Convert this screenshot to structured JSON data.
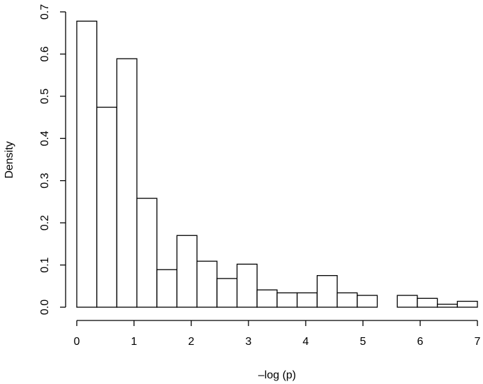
{
  "chart_data": {
    "type": "bar",
    "subtype": "histogram",
    "title": "",
    "xlabel": "–log (p)",
    "ylabel": "Density",
    "xlim": [
      0,
      7
    ],
    "ylim": [
      0,
      0.7
    ],
    "x_ticks": [
      "0",
      "1",
      "2",
      "3",
      "4",
      "5",
      "6",
      "7"
    ],
    "y_ticks": [
      "0.0",
      "0.1",
      "0.2",
      "0.3",
      "0.4",
      "0.5",
      "0.6",
      "0.7"
    ],
    "bin_width": 0.35,
    "bins": [
      {
        "x_start": 0.0,
        "x_end": 0.35,
        "density": 0.678
      },
      {
        "x_start": 0.35,
        "x_end": 0.7,
        "density": 0.474
      },
      {
        "x_start": 0.7,
        "x_end": 1.05,
        "density": 0.589
      },
      {
        "x_start": 1.05,
        "x_end": 1.4,
        "density": 0.258
      },
      {
        "x_start": 1.4,
        "x_end": 1.75,
        "density": 0.089
      },
      {
        "x_start": 1.75,
        "x_end": 2.1,
        "density": 0.17
      },
      {
        "x_start": 2.1,
        "x_end": 2.45,
        "density": 0.109
      },
      {
        "x_start": 2.45,
        "x_end": 2.8,
        "density": 0.068
      },
      {
        "x_start": 2.8,
        "x_end": 3.15,
        "density": 0.102
      },
      {
        "x_start": 3.15,
        "x_end": 3.5,
        "density": 0.041
      },
      {
        "x_start": 3.5,
        "x_end": 3.85,
        "density": 0.034
      },
      {
        "x_start": 3.85,
        "x_end": 4.2,
        "density": 0.034
      },
      {
        "x_start": 4.2,
        "x_end": 4.55,
        "density": 0.075
      },
      {
        "x_start": 4.55,
        "x_end": 4.9,
        "density": 0.034
      },
      {
        "x_start": 4.9,
        "x_end": 5.25,
        "density": 0.028
      },
      {
        "x_start": 5.25,
        "x_end": 5.6,
        "density": 0.0
      },
      {
        "x_start": 5.6,
        "x_end": 5.95,
        "density": 0.028
      },
      {
        "x_start": 5.95,
        "x_end": 6.3,
        "density": 0.021
      },
      {
        "x_start": 6.3,
        "x_end": 6.65,
        "density": 0.007
      },
      {
        "x_start": 6.65,
        "x_end": 7.0,
        "density": 0.014
      }
    ],
    "grid": false,
    "legend": "none"
  }
}
